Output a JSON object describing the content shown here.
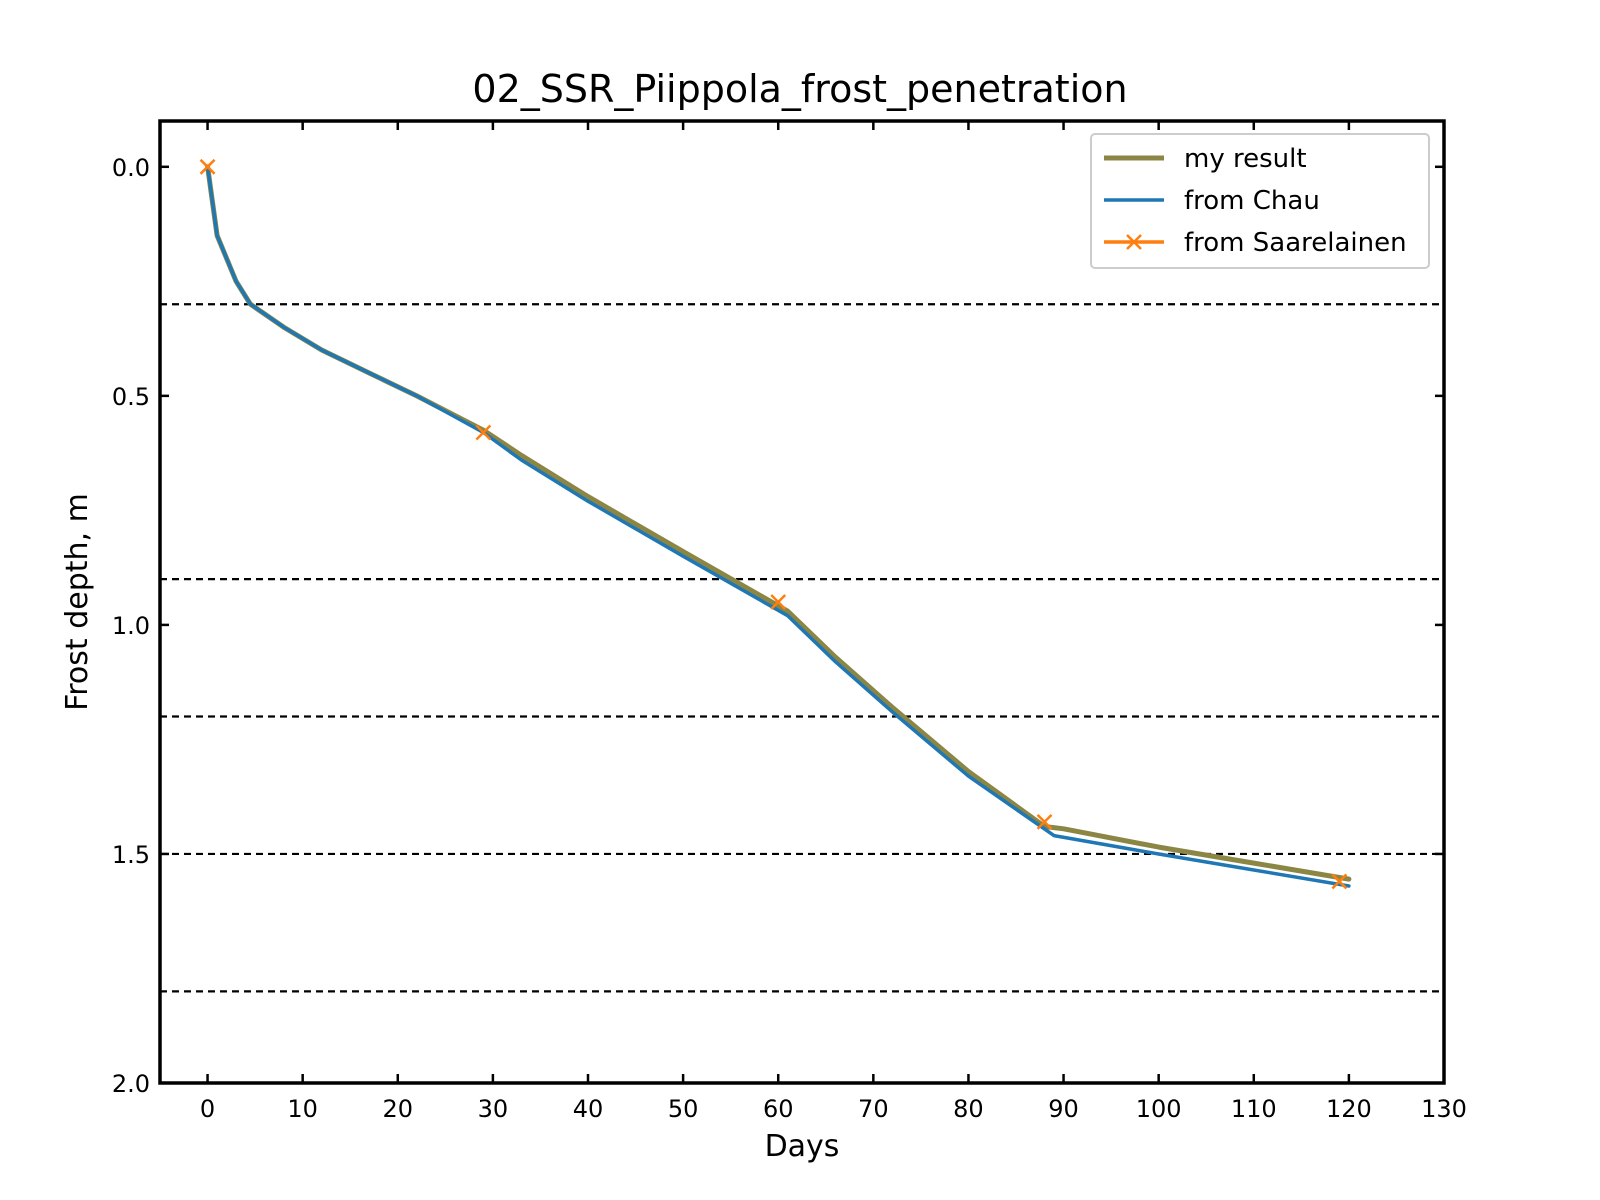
{
  "chart_data": {
    "type": "line",
    "title": "02_SSR_Piippola_frost_penetration",
    "xlabel": "Days",
    "ylabel": "Frost depth, m",
    "xlim": [
      -5,
      130
    ],
    "ylim": [
      2.0,
      -0.1
    ],
    "y_inverted": true,
    "x_ticks": [
      "0",
      "10",
      "20",
      "30",
      "40",
      "50",
      "60",
      "70",
      "80",
      "90",
      "100",
      "110",
      "120",
      "130"
    ],
    "y_ticks": [
      "0.0",
      "0.5",
      "1.0",
      "1.5",
      "2.0"
    ],
    "grid": false,
    "layer_boundaries": [
      0.3,
      0.9,
      1.2,
      1.5,
      1.8
    ],
    "legend_position": "top-right",
    "series": [
      {
        "name": "my result",
        "color": "#8c8644",
        "marker": "none",
        "x": [
          0,
          1,
          2,
          3,
          4.5,
          8,
          12,
          17,
          22,
          29,
          33,
          40,
          50,
          61,
          66,
          72,
          80,
          88,
          90,
          100,
          110,
          120
        ],
        "y": [
          0.0,
          0.15,
          0.2,
          0.25,
          0.3,
          0.35,
          0.4,
          0.45,
          0.5,
          0.575,
          0.63,
          0.72,
          0.84,
          0.97,
          1.07,
          1.18,
          1.32,
          1.44,
          1.445,
          1.485,
          1.52,
          1.555
        ]
      },
      {
        "name": "from Chau",
        "color": "#1f77b4",
        "marker": "none",
        "x": [
          0,
          1,
          2,
          3,
          4.5,
          8,
          12,
          17,
          22,
          29,
          33,
          40,
          50,
          61,
          66,
          72,
          80,
          89,
          100,
          110,
          120
        ],
        "y": [
          0.0,
          0.15,
          0.2,
          0.25,
          0.3,
          0.35,
          0.4,
          0.45,
          0.5,
          0.58,
          0.64,
          0.73,
          0.85,
          0.98,
          1.08,
          1.19,
          1.33,
          1.46,
          1.5,
          1.535,
          1.57
        ]
      },
      {
        "name": "from Saarelainen",
        "color": "#ff7f0e",
        "marker": "x",
        "x": [
          0,
          29,
          60,
          88,
          119
        ],
        "y": [
          0.0,
          0.58,
          0.95,
          1.43,
          1.56
        ]
      }
    ]
  }
}
